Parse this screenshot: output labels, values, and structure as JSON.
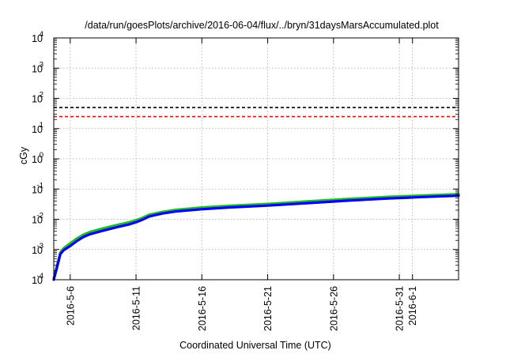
{
  "chart_data": {
    "type": "line",
    "title": "/data/run/goesPlots/archive/2016-06-04/flux/../bryn/31daysMarsAccumulated.plot",
    "xlabel": "Coordinated Universal Time (UTC)",
    "ylabel": "cGy",
    "yscale": "log",
    "ylim": [
      0.0001,
      10000
    ],
    "xlim": [
      "2016-05-04T18:00",
      "2016-06-04T12:00"
    ],
    "y_ticks": [
      {
        "value": 0.0001,
        "mantissa": "10",
        "exp": "-4"
      },
      {
        "value": 0.001,
        "mantissa": "10",
        "exp": "-3"
      },
      {
        "value": 0.01,
        "mantissa": "10",
        "exp": "-2"
      },
      {
        "value": 0.1,
        "mantissa": "10",
        "exp": "-1"
      },
      {
        "value": 1,
        "mantissa": "10",
        "exp": "0"
      },
      {
        "value": 10,
        "mantissa": "10",
        "exp": "1"
      },
      {
        "value": 100,
        "mantissa": "10",
        "exp": "2"
      },
      {
        "value": 1000,
        "mantissa": "10",
        "exp": "3"
      },
      {
        "value": 10000,
        "mantissa": "10",
        "exp": "4"
      }
    ],
    "x_ticks": [
      {
        "date": "2016-05-06",
        "label": "2016-5-6"
      },
      {
        "date": "2016-05-11",
        "label": "2016-5-11"
      },
      {
        "date": "2016-05-16",
        "label": "2016-5-16"
      },
      {
        "date": "2016-05-21",
        "label": "2016-5-21"
      },
      {
        "date": "2016-05-26",
        "label": "2016-5-26"
      },
      {
        "date": "2016-05-31",
        "label": "2016-5-31"
      },
      {
        "date": "2016-06-01",
        "label": "2016-6-1"
      }
    ],
    "grid": true,
    "hlines": [
      {
        "value": 50,
        "color": "#000000",
        "style": "dashed"
      },
      {
        "value": 25,
        "color": "#ff0000",
        "style": "dashed"
      }
    ],
    "series": [
      {
        "color": "#22bb22",
        "x": [
          "2016-05-04T18:00",
          "2016-05-05T00:00",
          "2016-05-05T06:00",
          "2016-05-05T12:00",
          "2016-05-06T00:00",
          "2016-05-06T12:00",
          "2016-05-07T00:00",
          "2016-05-07T12:00",
          "2016-05-08T12:00",
          "2016-05-09T12:00",
          "2016-05-10T12:00",
          "2016-05-11T00:00",
          "2016-05-11T12:00",
          "2016-05-12T00:00",
          "2016-05-13T00:00",
          "2016-05-14T00:00",
          "2016-05-16T00:00",
          "2016-05-18T00:00",
          "2016-05-21T00:00",
          "2016-05-24T00:00",
          "2016-05-27T00:00",
          "2016-05-30T00:00",
          "2016-06-02T00:00",
          "2016-06-04T12:00"
        ],
        "y": [
          0.00011,
          0.0003,
          0.0008,
          0.0011,
          0.0016,
          0.0023,
          0.0031,
          0.0038,
          0.005,
          0.0064,
          0.008,
          0.0093,
          0.0112,
          0.0142,
          0.0175,
          0.0205,
          0.0245,
          0.0278,
          0.0322,
          0.039,
          0.047,
          0.055,
          0.062,
          0.068
        ]
      },
      {
        "color": "#0000ff",
        "x": [
          "2016-05-04T18:00",
          "2016-05-05T00:00",
          "2016-05-05T06:00",
          "2016-05-05T12:00",
          "2016-05-06T00:00",
          "2016-05-06T12:00",
          "2016-05-07T00:00",
          "2016-05-07T12:00",
          "2016-05-08T12:00",
          "2016-05-09T12:00",
          "2016-05-10T12:00",
          "2016-05-11T00:00",
          "2016-05-11T12:00",
          "2016-05-12T00:00",
          "2016-05-13T00:00",
          "2016-05-14T00:00",
          "2016-05-16T00:00",
          "2016-05-18T00:00",
          "2016-05-21T00:00",
          "2016-05-24T00:00",
          "2016-05-27T00:00",
          "2016-05-30T00:00",
          "2016-06-02T00:00",
          "2016-06-04T12:00"
        ],
        "y": [
          0.0001,
          0.00026,
          0.0007,
          0.00095,
          0.0013,
          0.0019,
          0.0026,
          0.0032,
          0.0042,
          0.0054,
          0.0068,
          0.008,
          0.0097,
          0.0124,
          0.0155,
          0.018,
          0.0215,
          0.0245,
          0.0283,
          0.0342,
          0.0412,
          0.0485,
          0.055,
          0.06
        ]
      }
    ]
  }
}
